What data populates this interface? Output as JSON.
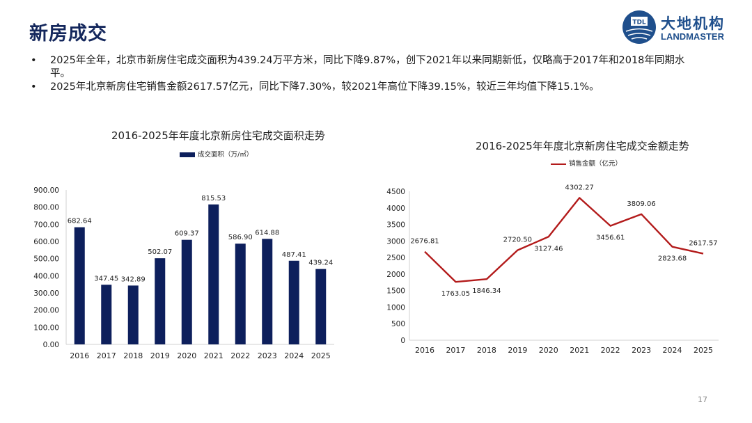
{
  "header": {
    "title": "新房成交",
    "logo": {
      "cn": "大地机构",
      "en": "LANDMASTER",
      "mark": "TDL AND"
    }
  },
  "bullets": [
    "2025年全年，北京市新房住宅成交面积为439.24万平方米，同比下降9.87%，创下2021年以来同期新低，仅略高于2017年和2018年同期水平。",
    "2025年北京新房住宅销售金额2617.57亿元，同比下降7.30%，较2021年高位下降39.15%，较近三年均值下降15.1%。"
  ],
  "chart_data": [
    {
      "type": "bar",
      "title": "2016-2025年年度北京新房住宅成交面积走势",
      "categories": [
        "2016",
        "2017",
        "2018",
        "2019",
        "2020",
        "2021",
        "2022",
        "2023",
        "2024",
        "2025"
      ],
      "series": [
        {
          "name": "成交面积（万/㎡）",
          "values": [
            682.64,
            347.45,
            342.89,
            502.07,
            609.37,
            815.53,
            586.9,
            614.88,
            487.41,
            439.24
          ],
          "color": "#0d1f5c"
        }
      ],
      "data_labels": [
        "682.64",
        "347.45",
        "342.89",
        "502.07",
        "609.37",
        "815.53",
        "586.90",
        "614.88",
        "487.41",
        "439.24"
      ],
      "y_ticks": [
        "0.00",
        "100.00",
        "200.00",
        "300.00",
        "400.00",
        "500.00",
        "600.00",
        "700.00",
        "800.00",
        "900.00"
      ],
      "ylim": [
        0,
        900
      ],
      "legend_position": "top-center",
      "grid": false
    },
    {
      "type": "line",
      "title": "2016-2025年年度北京新房住宅成交金额走势",
      "categories": [
        "2016",
        "2017",
        "2018",
        "2019",
        "2020",
        "2021",
        "2022",
        "2023",
        "2024",
        "2025"
      ],
      "series": [
        {
          "name": "销售金额（亿元）",
          "values": [
            2676.81,
            1763.05,
            1846.34,
            2720.5,
            3127.46,
            4302.27,
            3456.61,
            3809.06,
            2823.68,
            2617.57
          ],
          "color": "#b31b1b"
        }
      ],
      "data_labels": [
        "2676.81",
        "1763.05",
        "1846.34",
        "2720.50",
        "3127.46",
        "4302.27",
        "3456.61",
        "3809.06",
        "2823.68",
        "2617.57"
      ],
      "y_ticks": [
        "0",
        "500",
        "1000",
        "1500",
        "2000",
        "2500",
        "3000",
        "3500",
        "4000",
        "4500"
      ],
      "ylim": [
        0,
        4500
      ],
      "legend_position": "top-center",
      "grid": false
    }
  ],
  "page_number": "17"
}
